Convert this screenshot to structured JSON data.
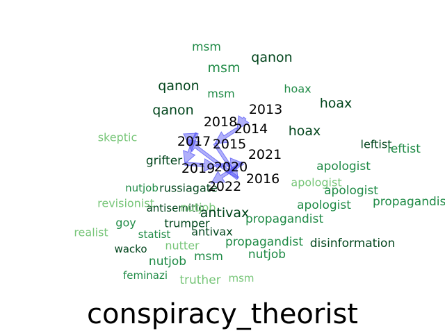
{
  "chart_data": {
    "type": "scatter",
    "title": "conspiracy_theorist",
    "xlabel": "",
    "ylabel": "",
    "grid": false,
    "axes_visible": false,
    "colors": {
      "dark": "#00441b",
      "mid": "#1e8a45",
      "light": "#78c679",
      "year_text": "#000000",
      "arrow_fill": "#4f4ff5",
      "title": "#000000"
    },
    "year_labels": [
      "2013",
      "2014",
      "2015",
      "2016",
      "2017",
      "2018",
      "2019",
      "2020",
      "2021",
      "2022"
    ],
    "trajectory": [
      "2013",
      "2014",
      "2015",
      "2016",
      "2017",
      "2018",
      "2019",
      "2020",
      "2021",
      "2022"
    ],
    "neighbor_words": [
      {
        "text": "msm",
        "shade": "mid"
      },
      {
        "text": "qanon",
        "shade": "dark"
      },
      {
        "text": "msm",
        "shade": "mid"
      },
      {
        "text": "qanon",
        "shade": "dark"
      },
      {
        "text": "msm",
        "shade": "mid"
      },
      {
        "text": "hoax",
        "shade": "mid"
      },
      {
        "text": "qanon",
        "shade": "dark"
      },
      {
        "text": "hoax",
        "shade": "dark"
      },
      {
        "text": "hoax",
        "shade": "dark"
      },
      {
        "text": "skeptic",
        "shade": "light"
      },
      {
        "text": "leftist",
        "shade": "dark"
      },
      {
        "text": "leftist",
        "shade": "mid"
      },
      {
        "text": "grifter",
        "shade": "dark"
      },
      {
        "text": "apologist",
        "shade": "mid"
      },
      {
        "text": "apologist",
        "shade": "light"
      },
      {
        "text": "nutjob",
        "shade": "mid"
      },
      {
        "text": "russiagate",
        "shade": "dark"
      },
      {
        "text": "apologist",
        "shade": "mid"
      },
      {
        "text": "revisionist",
        "shade": "light"
      },
      {
        "text": "propagandist",
        "shade": "mid"
      },
      {
        "text": "antisemitic",
        "shade": "dark"
      },
      {
        "text": "nutjob",
        "shade": "light"
      },
      {
        "text": "apologist",
        "shade": "mid"
      },
      {
        "text": "antivax",
        "shade": "dark"
      },
      {
        "text": "goy",
        "shade": "mid"
      },
      {
        "text": "propagandist",
        "shade": "mid"
      },
      {
        "text": "trumper",
        "shade": "dark"
      },
      {
        "text": "realist",
        "shade": "light"
      },
      {
        "text": "statist",
        "shade": "mid"
      },
      {
        "text": "antivax",
        "shade": "dark"
      },
      {
        "text": "propagandist",
        "shade": "mid"
      },
      {
        "text": "disinformation",
        "shade": "dark"
      },
      {
        "text": "wacko",
        "shade": "dark"
      },
      {
        "text": "nutter",
        "shade": "light"
      },
      {
        "text": "nutjob",
        "shade": "mid"
      },
      {
        "text": "msm",
        "shade": "mid"
      },
      {
        "text": "nutjob",
        "shade": "mid"
      },
      {
        "text": "feminazi",
        "shade": "mid"
      },
      {
        "text": "truther",
        "shade": "light"
      },
      {
        "text": "msm",
        "shade": "light"
      }
    ]
  }
}
